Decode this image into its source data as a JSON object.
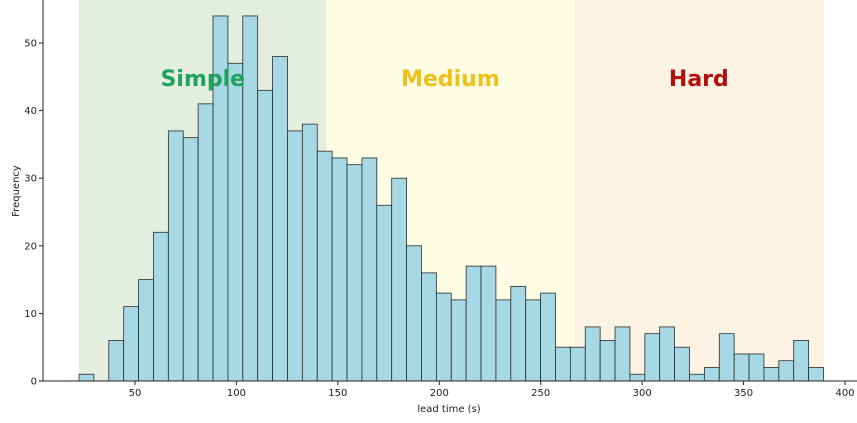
{
  "chart_data": {
    "type": "bar",
    "subtype": "histogram",
    "xlabel": "lead time (s)",
    "ylabel": "Frequency",
    "xlim": [
      10,
      400
    ],
    "ylim": [
      0,
      55
    ],
    "xticks": [
      50,
      100,
      150,
      200,
      250,
      300,
      350,
      400
    ],
    "yticks": [
      0,
      10,
      20,
      30,
      40,
      50
    ],
    "bar_color": "#a7d8e6",
    "bar_edge_color": "#2b2b2b",
    "bins": {
      "start": 22.4,
      "width": 7.34,
      "counts": [
        1,
        0,
        6,
        11,
        15,
        22,
        37,
        36,
        41,
        54,
        47,
        54,
        43,
        48,
        37,
        38,
        34,
        33,
        32,
        33,
        26,
        30,
        20,
        16,
        13,
        12,
        17,
        17,
        12,
        14,
        12,
        13,
        5,
        5,
        8,
        6,
        8,
        1,
        7,
        8,
        5,
        1,
        2,
        7,
        4,
        4,
        2,
        3,
        6,
        2
      ]
    },
    "regions": [
      {
        "label": "Simple",
        "x_start": 22.4,
        "x_end": 144.5,
        "fill": "#e4eedf",
        "text_color": "#1fa35b"
      },
      {
        "label": "Medium",
        "x_start": 144.5,
        "x_end": 266.5,
        "fill": "#fefde3",
        "text_color": "#efc01a"
      },
      {
        "label": "Hard",
        "x_start": 266.5,
        "x_end": 389.4,
        "fill": "#fdf3e3",
        "text_color": "#b30f0f"
      }
    ],
    "grid": false,
    "spines": "left-bottom"
  }
}
